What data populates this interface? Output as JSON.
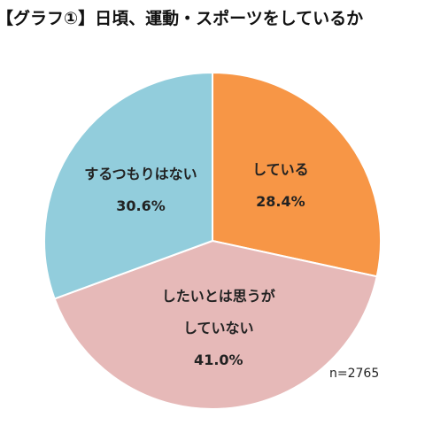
{
  "chart_data": {
    "type": "pie",
    "title": "【グラフ①】日頃、運動・スポーツをしているか",
    "categories": [
      "している",
      "したいとは思うが\nしていない",
      "するつもりはない"
    ],
    "values": [
      28.4,
      41.0,
      30.6
    ],
    "value_labels": [
      "28.4%",
      "41.0%",
      "30.6%"
    ],
    "colors": [
      "#F79646",
      "#E6B9B8",
      "#92CDDC"
    ],
    "annotation": "n=2765"
  }
}
